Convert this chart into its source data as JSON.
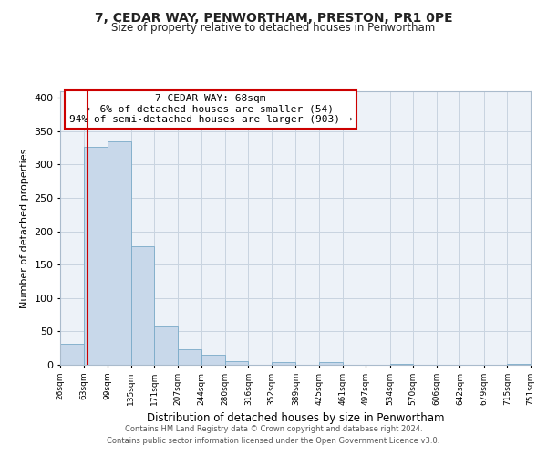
{
  "title": "7, CEDAR WAY, PENWORTHAM, PRESTON, PR1 0PE",
  "subtitle": "Size of property relative to detached houses in Penwortham",
  "xlabel": "Distribution of detached houses by size in Penwortham",
  "ylabel": "Number of detached properties",
  "bar_color": "#c8d8ea",
  "bar_edge_color": "#7aaac8",
  "background_color": "#ffffff",
  "plot_bg_color": "#edf2f8",
  "grid_color": "#c8d4e0",
  "property_line_x": 68,
  "property_line_color": "#cc0000",
  "annotation_text": "7 CEDAR WAY: 68sqm\n← 6% of detached houses are smaller (54)\n94% of semi-detached houses are larger (903) →",
  "annotation_box_color": "#ffffff",
  "annotation_box_edge_color": "#cc0000",
  "footer_line1": "Contains HM Land Registry data © Crown copyright and database right 2024.",
  "footer_line2": "Contains public sector information licensed under the Open Government Licence v3.0.",
  "bin_edges": [
    26,
    63,
    99,
    135,
    171,
    207,
    244,
    280,
    316,
    352,
    389,
    425,
    461,
    497,
    534,
    570,
    606,
    642,
    679,
    715,
    751
  ],
  "bar_heights": [
    32,
    327,
    335,
    177,
    57,
    23,
    15,
    5,
    0,
    4,
    0,
    4,
    0,
    0,
    1,
    0,
    0,
    0,
    0,
    1
  ],
  "ylim": [
    0,
    410
  ],
  "yticks": [
    0,
    50,
    100,
    150,
    200,
    250,
    300,
    350,
    400
  ],
  "xtick_labels": [
    "26sqm",
    "63sqm",
    "99sqm",
    "135sqm",
    "171sqm",
    "207sqm",
    "244sqm",
    "280sqm",
    "316sqm",
    "352sqm",
    "389sqm",
    "425sqm",
    "461sqm",
    "497sqm",
    "534sqm",
    "570sqm",
    "606sqm",
    "642sqm",
    "679sqm",
    "715sqm",
    "751sqm"
  ]
}
